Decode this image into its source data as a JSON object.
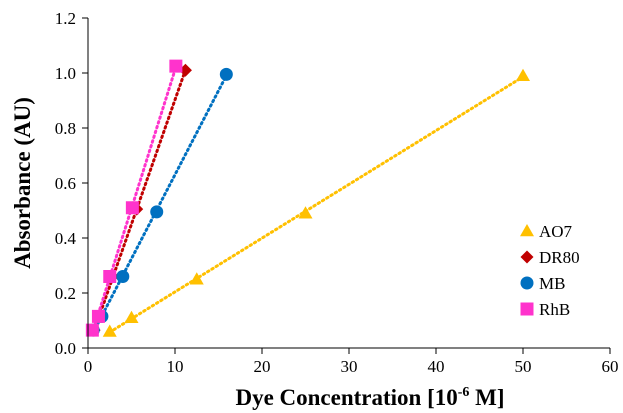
{
  "chart_data": {
    "type": "scatter",
    "xlabel": "Dye Concentration [10",
    "xlabel_sup": "-6",
    "xlabel_end": " M]",
    "ylabel": "Absorbance (AU)",
    "xlim": [
      0,
      60
    ],
    "ylim": [
      0.0,
      1.2
    ],
    "x_ticks": [
      0,
      10,
      20,
      30,
      40,
      50,
      60
    ],
    "y_ticks": [
      "0.0",
      "0.2",
      "0.4",
      "0.6",
      "0.8",
      "1.0",
      "1.2"
    ],
    "grid": false,
    "legend_position": "right",
    "trendlines": "dotted linear",
    "series": [
      {
        "name": "AO7",
        "marker": "triangle",
        "color": "#FFC000",
        "x": [
          2.5,
          5,
          12.5,
          25,
          50
        ],
        "y": [
          0.06,
          0.11,
          0.25,
          0.49,
          0.99
        ]
      },
      {
        "name": "DR80",
        "marker": "diamond",
        "color": "#C00000",
        "x": [
          0.7,
          1.4,
          2.8,
          5.6,
          11.2
        ],
        "y": [
          0.065,
          0.115,
          0.26,
          0.505,
          1.01
        ]
      },
      {
        "name": "MB",
        "marker": "circle",
        "color": "#0070C0",
        "x": [
          0.6,
          1.6,
          4.0,
          7.9,
          15.9
        ],
        "y": [
          0.065,
          0.115,
          0.26,
          0.495,
          0.995
        ]
      },
      {
        "name": "RhB",
        "marker": "square",
        "color": "#FF33CC",
        "x": [
          0.5,
          1.2,
          2.5,
          5.1,
          10.1
        ],
        "y": [
          0.065,
          0.115,
          0.26,
          0.51,
          1.025
        ]
      }
    ]
  }
}
